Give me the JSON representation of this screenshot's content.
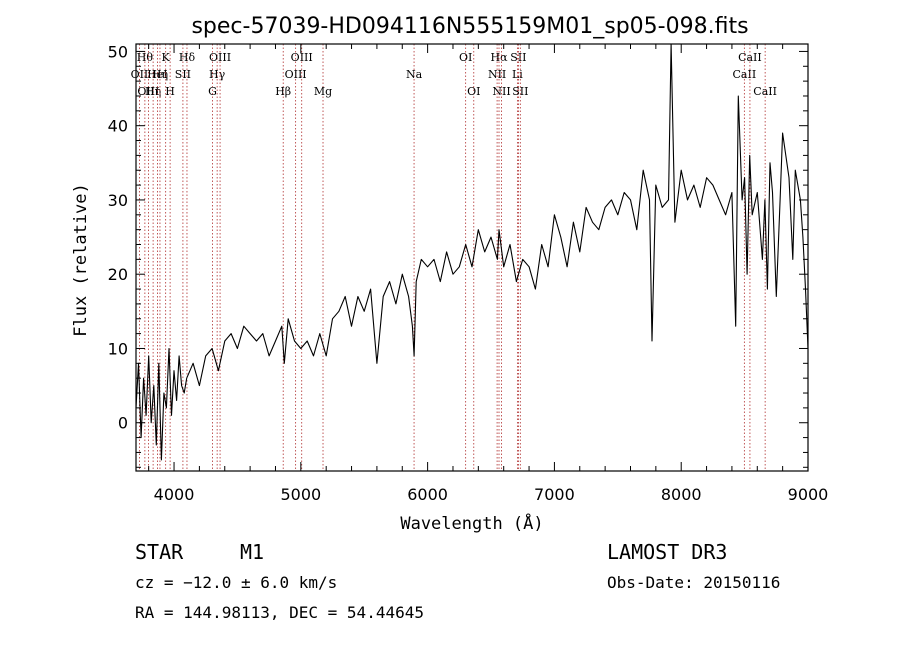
{
  "chart_data": {
    "type": "line",
    "title": "spec-57039-HD094116N555159M01_sp05-098.fits",
    "xlabel": "Wavelength (Å)",
    "ylabel": "Flux (relative)",
    "xlim": [
      3700,
      9000
    ],
    "ylim": [
      -6.5,
      51
    ],
    "xticks": [
      4000,
      5000,
      6000,
      7000,
      8000,
      9000
    ],
    "yticks": [
      0,
      10,
      20,
      30,
      40,
      50
    ],
    "grid": false,
    "series": [
      {
        "x": [
          3700,
          3720,
          3740,
          3760,
          3780,
          3800,
          3820,
          3840,
          3860,
          3880,
          3900,
          3920,
          3940,
          3960,
          3980,
          4000,
          4020,
          4040,
          4060,
          4080,
          4100,
          4150,
          4200,
          4250,
          4300,
          4350,
          4400,
          4450,
          4500,
          4550,
          4600,
          4650,
          4700,
          4750,
          4800,
          4850,
          4870,
          4900,
          4950,
          5000,
          5050,
          5100,
          5150,
          5200,
          5250,
          5300,
          5350,
          5400,
          5450,
          5500,
          5550,
          5600,
          5650,
          5700,
          5750,
          5800,
          5850,
          5880,
          5893,
          5910,
          5950,
          6000,
          6050,
          6100,
          6150,
          6200,
          6250,
          6300,
          6350,
          6400,
          6450,
          6500,
          6550,
          6563,
          6600,
          6650,
          6700,
          6750,
          6800,
          6850,
          6900,
          6950,
          7000,
          7050,
          7100,
          7150,
          7200,
          7250,
          7300,
          7350,
          7400,
          7450,
          7500,
          7550,
          7600,
          7650,
          7700,
          7750,
          7770,
          7800,
          7850,
          7900,
          7920,
          7950,
          8000,
          8050,
          8100,
          8150,
          8200,
          8250,
          8300,
          8350,
          8400,
          8430,
          8450,
          8480,
          8500,
          8520,
          8540,
          8560,
          8600,
          8640,
          8660,
          8680,
          8700,
          8720,
          8750,
          8780,
          8800,
          8850,
          8880,
          8900,
          8940,
          8960,
          8980,
          9000
        ],
        "y": [
          2,
          8,
          -2,
          6,
          1,
          9,
          0,
          5,
          -3,
          8,
          -5,
          4,
          2,
          10,
          1,
          7,
          3,
          9,
          5,
          4,
          6,
          8,
          5,
          9,
          10,
          7,
          11,
          12,
          10,
          13,
          12,
          11,
          12,
          9,
          11,
          13,
          8,
          14,
          11,
          10,
          11,
          9,
          12,
          9,
          14,
          15,
          17,
          13,
          17,
          15,
          18,
          8,
          17,
          19,
          16,
          20,
          17,
          13,
          9,
          19,
          22,
          21,
          22,
          19,
          23,
          20,
          21,
          24,
          21,
          26,
          23,
          25,
          22,
          26,
          21,
          24,
          19,
          22,
          21,
          18,
          24,
          21,
          28,
          25,
          21,
          27,
          23,
          29,
          27,
          26,
          29,
          30,
          28,
          31,
          30,
          26,
          34,
          30,
          11,
          32,
          29,
          30,
          51,
          27,
          34,
          30,
          32,
          29,
          33,
          32,
          30,
          28,
          31,
          13,
          44,
          30,
          33,
          20,
          36,
          28,
          31,
          22,
          30,
          18,
          35,
          31,
          17,
          30,
          39,
          33,
          22,
          34,
          30,
          25,
          18,
          10
        ]
      }
    ],
    "lines": [
      {
        "w": 3727,
        "label": "OII",
        "row": 1
      },
      {
        "w": 3770,
        "label": "Hθ",
        "row": 0
      },
      {
        "w": 3798,
        "label": "OIII",
        "row": 2
      },
      {
        "w": 3835,
        "label": "Hη",
        "row": 2
      },
      {
        "w": 3869,
        "label": "HeI",
        "row": 1
      },
      {
        "w": 3889,
        "label": "Hη",
        "row": 1
      },
      {
        "w": 3934,
        "label": "K",
        "row": 0
      },
      {
        "w": 3969,
        "label": "H",
        "row": 2
      },
      {
        "w": 4070,
        "label": "SII",
        "row": 1
      },
      {
        "w": 4102,
        "label": "Hδ",
        "row": 0
      },
      {
        "w": 4304,
        "label": "G",
        "row": 2
      },
      {
        "w": 4340,
        "label": "Hγ",
        "row": 1
      },
      {
        "w": 4363,
        "label": "OIII",
        "row": 0
      },
      {
        "w": 4861,
        "label": "Hβ",
        "row": 2
      },
      {
        "w": 4959,
        "label": "OIII",
        "row": 1
      },
      {
        "w": 5007,
        "label": "OIII",
        "row": 0
      },
      {
        "w": 5175,
        "label": "Mg",
        "row": 2
      },
      {
        "w": 5893,
        "label": "Na",
        "row": 1
      },
      {
        "w": 6300,
        "label": "OI",
        "row": 0
      },
      {
        "w": 6364,
        "label": "OI",
        "row": 2
      },
      {
        "w": 6548,
        "label": "NII",
        "row": 1
      },
      {
        "w": 6563,
        "label": "Hα",
        "row": 0
      },
      {
        "w": 6583,
        "label": "NII",
        "row": 2
      },
      {
        "w": 6708,
        "label": "Li",
        "row": 1
      },
      {
        "w": 6716,
        "label": "SII",
        "row": 0
      },
      {
        "w": 6731,
        "label": "SII",
        "row": 2
      },
      {
        "w": 8498,
        "label": "CaII",
        "row": 1
      },
      {
        "w": 8542,
        "label": "CaII",
        "row": 0
      },
      {
        "w": 8662,
        "label": "CaII",
        "row": 2
      }
    ]
  },
  "info": {
    "object_class": "STAR",
    "subclass": "M1",
    "survey": "LAMOST DR3",
    "cz": "cz = −12.0 ± 6.0 km/s",
    "obs_date": "Obs-Date: 20150116",
    "coords": "RA = 144.98113, DEC =  54.44645"
  }
}
